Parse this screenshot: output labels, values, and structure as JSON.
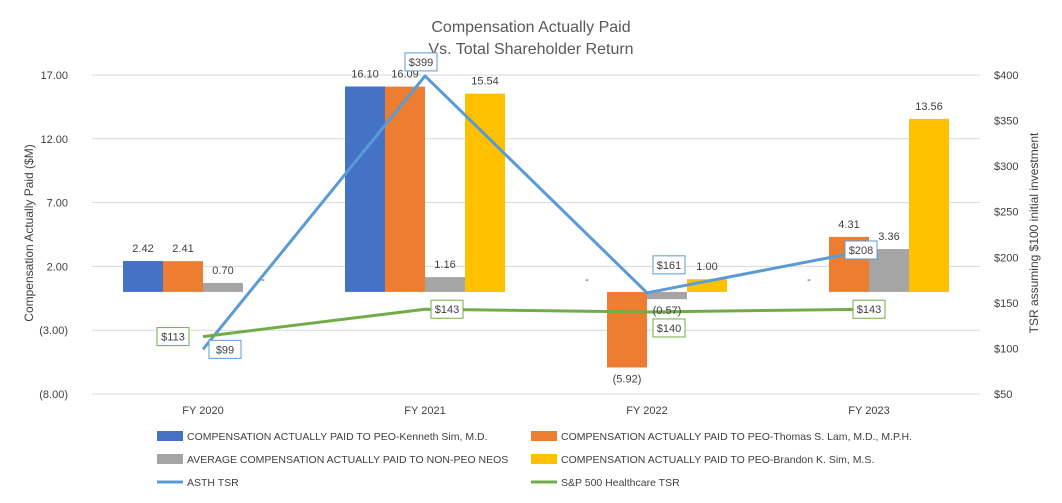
{
  "chart_data": {
    "type": "bar",
    "title": "Compensation Actually Paid",
    "subtitle": "Vs. Total Shareholder Return",
    "categories": [
      "FY 2020",
      "FY 2021",
      "FY 2022",
      "FY 2023"
    ],
    "ylabel": "Compensation Actually Paid ($M)",
    "y2label": "TSR assuming $100 initial investment",
    "ylim": [
      -8,
      17
    ],
    "yticks": [
      17,
      12,
      7,
      2,
      -3,
      -8
    ],
    "ytick_labels": [
      "17.00",
      "12.00",
      "7.00",
      "2.00",
      "(3.00)",
      "(8.00)"
    ],
    "y2lim": [
      50,
      400
    ],
    "y2ticks": [
      400,
      350,
      300,
      250,
      200,
      150,
      100,
      50
    ],
    "y2tick_labels": [
      "$400",
      "$350",
      "$300",
      "$250",
      "$200",
      "$150",
      "$100",
      "$50"
    ],
    "series": [
      {
        "name": "COMPENSATION ACTUALLY PAID TO PEO-Kenneth Sim, M.D.",
        "color": "#4472C4",
        "values": [
          2.42,
          16.1,
          0,
          0
        ],
        "labels": [
          "2.42",
          "16.10",
          "-",
          "-"
        ]
      },
      {
        "name": "COMPENSATION ACTUALLY PAID TO PEO-Thomas S. Lam, M.D., M.P.H.",
        "color": "#ED7D31",
        "values": [
          2.41,
          16.09,
          -5.92,
          4.31
        ],
        "labels": [
          "2.41",
          "16.09",
          "(5.92)",
          "4.31"
        ]
      },
      {
        "name": "AVERAGE COMPENSATION ACTUALLY PAID TO NON-PEO NEOS",
        "color": "#A5A5A5",
        "values": [
          0.7,
          1.16,
          -0.57,
          3.36
        ],
        "labels": [
          "0.70",
          "1.16",
          "(0.57)",
          "3.36"
        ]
      },
      {
        "name": "COMPENSATION ACTUALLY PAID TO PEO-Brandon K. Sim, M.S.",
        "color": "#FFC000",
        "values": [
          0,
          15.54,
          1.0,
          13.56
        ],
        "labels": [
          "-",
          "15.54",
          "1.00",
          "13.56"
        ]
      }
    ],
    "lines": [
      {
        "name": "ASTH TSR",
        "color": "#5B9BD5",
        "values": [
          99,
          399,
          161,
          208
        ],
        "labels": [
          "$99",
          "$399",
          "$161",
          "$208"
        ]
      },
      {
        "name": "S&P 500 Healthcare TSR",
        "color": "#70AD47",
        "values": [
          113,
          143,
          140,
          143
        ],
        "labels": [
          "$113",
          "$143",
          "$140",
          "$143"
        ]
      }
    ],
    "legend": "bottom"
  }
}
